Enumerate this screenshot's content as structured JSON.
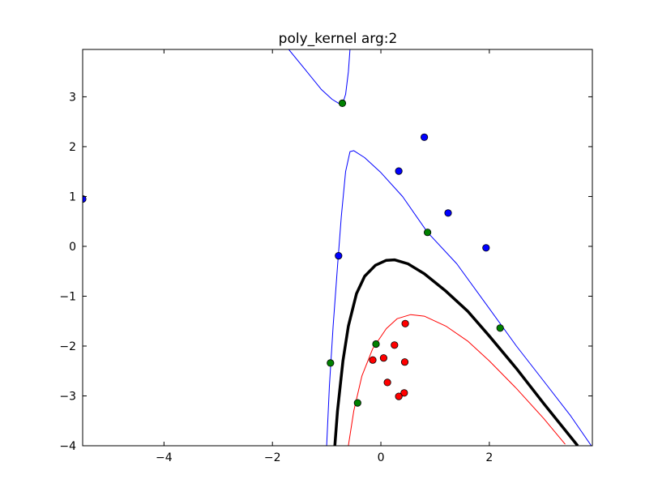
{
  "chart_data": {
    "type": "scatter",
    "title": "poly_kernel arg:2",
    "xlabel": "",
    "ylabel": "",
    "xlim": [
      -5.5,
      3.9
    ],
    "ylim": [
      -4,
      3.95
    ],
    "x_ticks": [
      -4,
      -2,
      0,
      2
    ],
    "y_ticks": [
      -4,
      -3,
      -2,
      -1,
      0,
      1,
      2,
      3
    ],
    "x_tick_labels": [
      "−4",
      "−2",
      "0",
      "2"
    ],
    "y_tick_labels": [
      "−4",
      "−3",
      "−2",
      "−1",
      "0",
      "1",
      "2",
      "3"
    ],
    "grid": false,
    "points": [
      {
        "x": -5.5,
        "y": 0.95,
        "color": "#0000ff"
      },
      {
        "x": 0.33,
        "y": 1.51,
        "color": "#0000ff"
      },
      {
        "x": 0.8,
        "y": 2.19,
        "color": "#0000ff"
      },
      {
        "x": 1.24,
        "y": 0.67,
        "color": "#0000ff"
      },
      {
        "x": 1.94,
        "y": -0.03,
        "color": "#0000ff"
      },
      {
        "x": -0.78,
        "y": -0.19,
        "color": "#0000ff"
      },
      {
        "x": -0.71,
        "y": 2.87,
        "color": "#008000"
      },
      {
        "x": 0.86,
        "y": 0.28,
        "color": "#008000"
      },
      {
        "x": 2.2,
        "y": -1.64,
        "color": "#008000"
      },
      {
        "x": -0.09,
        "y": -1.96,
        "color": "#008000"
      },
      {
        "x": -0.93,
        "y": -2.34,
        "color": "#008000"
      },
      {
        "x": -0.43,
        "y": -3.14,
        "color": "#008000"
      },
      {
        "x": 0.45,
        "y": -1.55,
        "color": "#ff0000"
      },
      {
        "x": 0.25,
        "y": -1.98,
        "color": "#ff0000"
      },
      {
        "x": -0.15,
        "y": -2.28,
        "color": "#ff0000"
      },
      {
        "x": 0.05,
        "y": -2.24,
        "color": "#ff0000"
      },
      {
        "x": 0.44,
        "y": -2.32,
        "color": "#ff0000"
      },
      {
        "x": 0.12,
        "y": -2.73,
        "color": "#ff0000"
      },
      {
        "x": 0.43,
        "y": -2.94,
        "color": "#ff0000"
      },
      {
        "x": 0.33,
        "y": -3.01,
        "color": "#ff0000"
      }
    ],
    "curves": [
      {
        "color": "#000000",
        "width": 3.5,
        "points": [
          [
            -0.85,
            -4.0
          ],
          [
            -0.8,
            -3.3
          ],
          [
            -0.7,
            -2.3
          ],
          [
            -0.6,
            -1.6
          ],
          [
            -0.45,
            -0.95
          ],
          [
            -0.3,
            -0.6
          ],
          [
            -0.1,
            -0.38
          ],
          [
            0.1,
            -0.28
          ],
          [
            0.25,
            -0.27
          ],
          [
            0.5,
            -0.35
          ],
          [
            0.8,
            -0.55
          ],
          [
            1.2,
            -0.9
          ],
          [
            1.6,
            -1.3
          ],
          [
            2.0,
            -1.8
          ],
          [
            2.5,
            -2.45
          ],
          [
            3.0,
            -3.15
          ],
          [
            3.63,
            -4.0
          ]
        ]
      },
      {
        "color": "#ff0000",
        "width": 1,
        "points": [
          [
            -0.6,
            -4.0
          ],
          [
            -0.5,
            -3.3
          ],
          [
            -0.35,
            -2.6
          ],
          [
            -0.15,
            -2.05
          ],
          [
            0.1,
            -1.65
          ],
          [
            0.3,
            -1.45
          ],
          [
            0.55,
            -1.37
          ],
          [
            0.8,
            -1.4
          ],
          [
            1.2,
            -1.6
          ],
          [
            1.6,
            -1.9
          ],
          [
            2.0,
            -2.3
          ],
          [
            2.5,
            -2.85
          ],
          [
            3.0,
            -3.45
          ],
          [
            3.4,
            -3.97
          ]
        ]
      },
      {
        "color": "#0000ff",
        "width": 1,
        "points": [
          [
            -1.0,
            -4.0
          ],
          [
            -0.95,
            -2.8
          ],
          [
            -0.88,
            -1.6
          ],
          [
            -0.8,
            -0.4
          ],
          [
            -0.73,
            0.6
          ],
          [
            -0.65,
            1.5
          ],
          [
            -0.57,
            1.9
          ],
          [
            -0.5,
            1.92
          ],
          [
            -0.3,
            1.78
          ],
          [
            0.0,
            1.48
          ],
          [
            0.4,
            1.0
          ],
          [
            0.86,
            0.28
          ],
          [
            1.4,
            -0.35
          ],
          [
            2.0,
            -1.25
          ],
          [
            2.5,
            -2.0
          ],
          [
            3.0,
            -2.7
          ],
          [
            3.5,
            -3.4
          ],
          [
            3.88,
            -4.0
          ]
        ]
      },
      {
        "color": "#0000ff",
        "width": 1,
        "points": [
          [
            -1.7,
            3.95
          ],
          [
            -1.4,
            3.55
          ],
          [
            -1.1,
            3.15
          ],
          [
            -0.9,
            2.95
          ],
          [
            -0.78,
            2.87
          ],
          [
            -0.7,
            2.88
          ],
          [
            -0.65,
            3.05
          ],
          [
            -0.6,
            3.5
          ],
          [
            -0.57,
            3.95
          ]
        ]
      }
    ]
  }
}
